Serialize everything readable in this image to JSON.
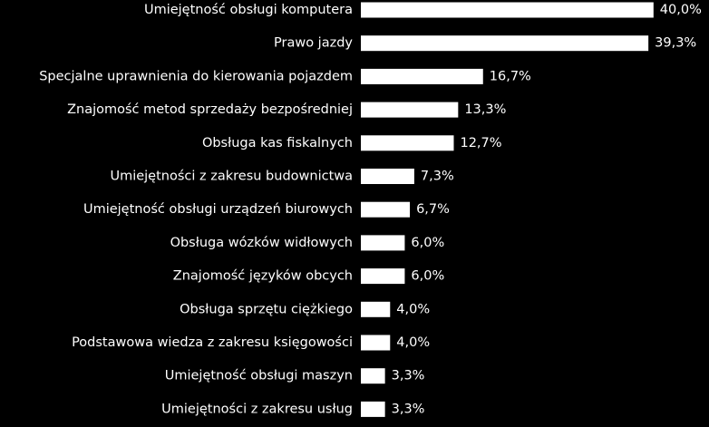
{
  "chart_data": {
    "type": "bar",
    "orientation": "horizontal",
    "categories": [
      "Umiejętność obsługi komputera",
      "Prawo jazdy",
      "Specjalne uprawnienia do kierowania pojazdem",
      "Znajomość metod sprzedaży bezpośredniej",
      "Obsługa kas fiskalnych",
      "Umiejętności z zakresu budownictwa",
      "Umiejętność obsługi urządzeń biurowych",
      "Obsługa wózków widłowych",
      "Znajomość języków obcych",
      "Obsługa sprzętu ciężkiego",
      "Podstawowa wiedza z zakresu księgowości",
      "Umiejętność obsługi maszyn",
      "Umiejętności z zakresu usług"
    ],
    "values": [
      40.0,
      39.3,
      16.7,
      13.3,
      12.7,
      7.3,
      6.7,
      6.0,
      6.0,
      4.0,
      4.0,
      3.3,
      3.3
    ],
    "value_labels": [
      "40,0%",
      "39,3%",
      "16,7%",
      "13,3%",
      "12,7%",
      "7,3%",
      "6,7%",
      "6,0%",
      "6,0%",
      "4,0%",
      "4,0%",
      "3,3%",
      "3,3%"
    ],
    "unit": "%",
    "grid": false,
    "legend": "none",
    "colors": {
      "background": "#000000",
      "bar": "#ffffff",
      "text": "#ffffff"
    }
  }
}
